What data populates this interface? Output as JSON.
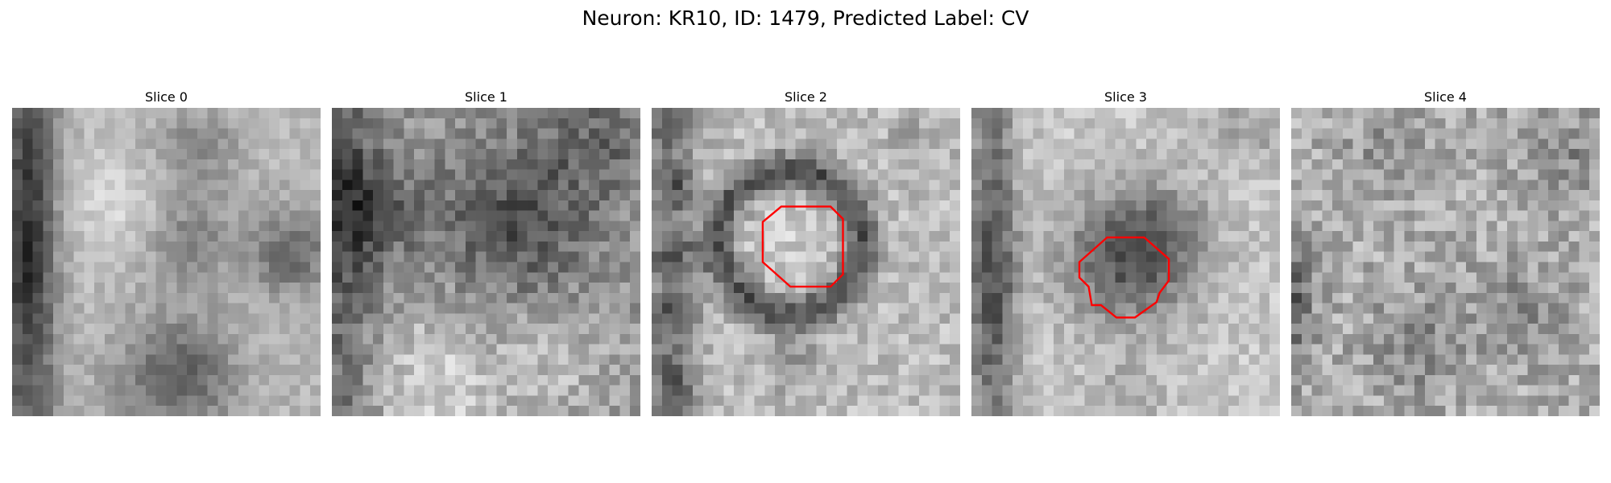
{
  "figure": {
    "title": "Neuron: KR10, ID: 1479, Predicted Label: CV"
  },
  "slices": [
    {
      "title": "Slice 0",
      "has_outline": false,
      "seed": 1479,
      "pattern": "left-band"
    },
    {
      "title": "Slice 1",
      "has_outline": false,
      "seed": 2917,
      "pattern": "mottled-dark"
    },
    {
      "title": "Slice 2",
      "has_outline": true,
      "seed": 3343,
      "pattern": "ring"
    },
    {
      "title": "Slice 3",
      "has_outline": true,
      "seed": 4721,
      "pattern": "dark-blob"
    },
    {
      "title": "Slice 4",
      "has_outline": false,
      "seed": 5903,
      "pattern": "speckle"
    }
  ],
  "colors": {
    "outline": "#ff0000",
    "background": "#ffffff"
  }
}
